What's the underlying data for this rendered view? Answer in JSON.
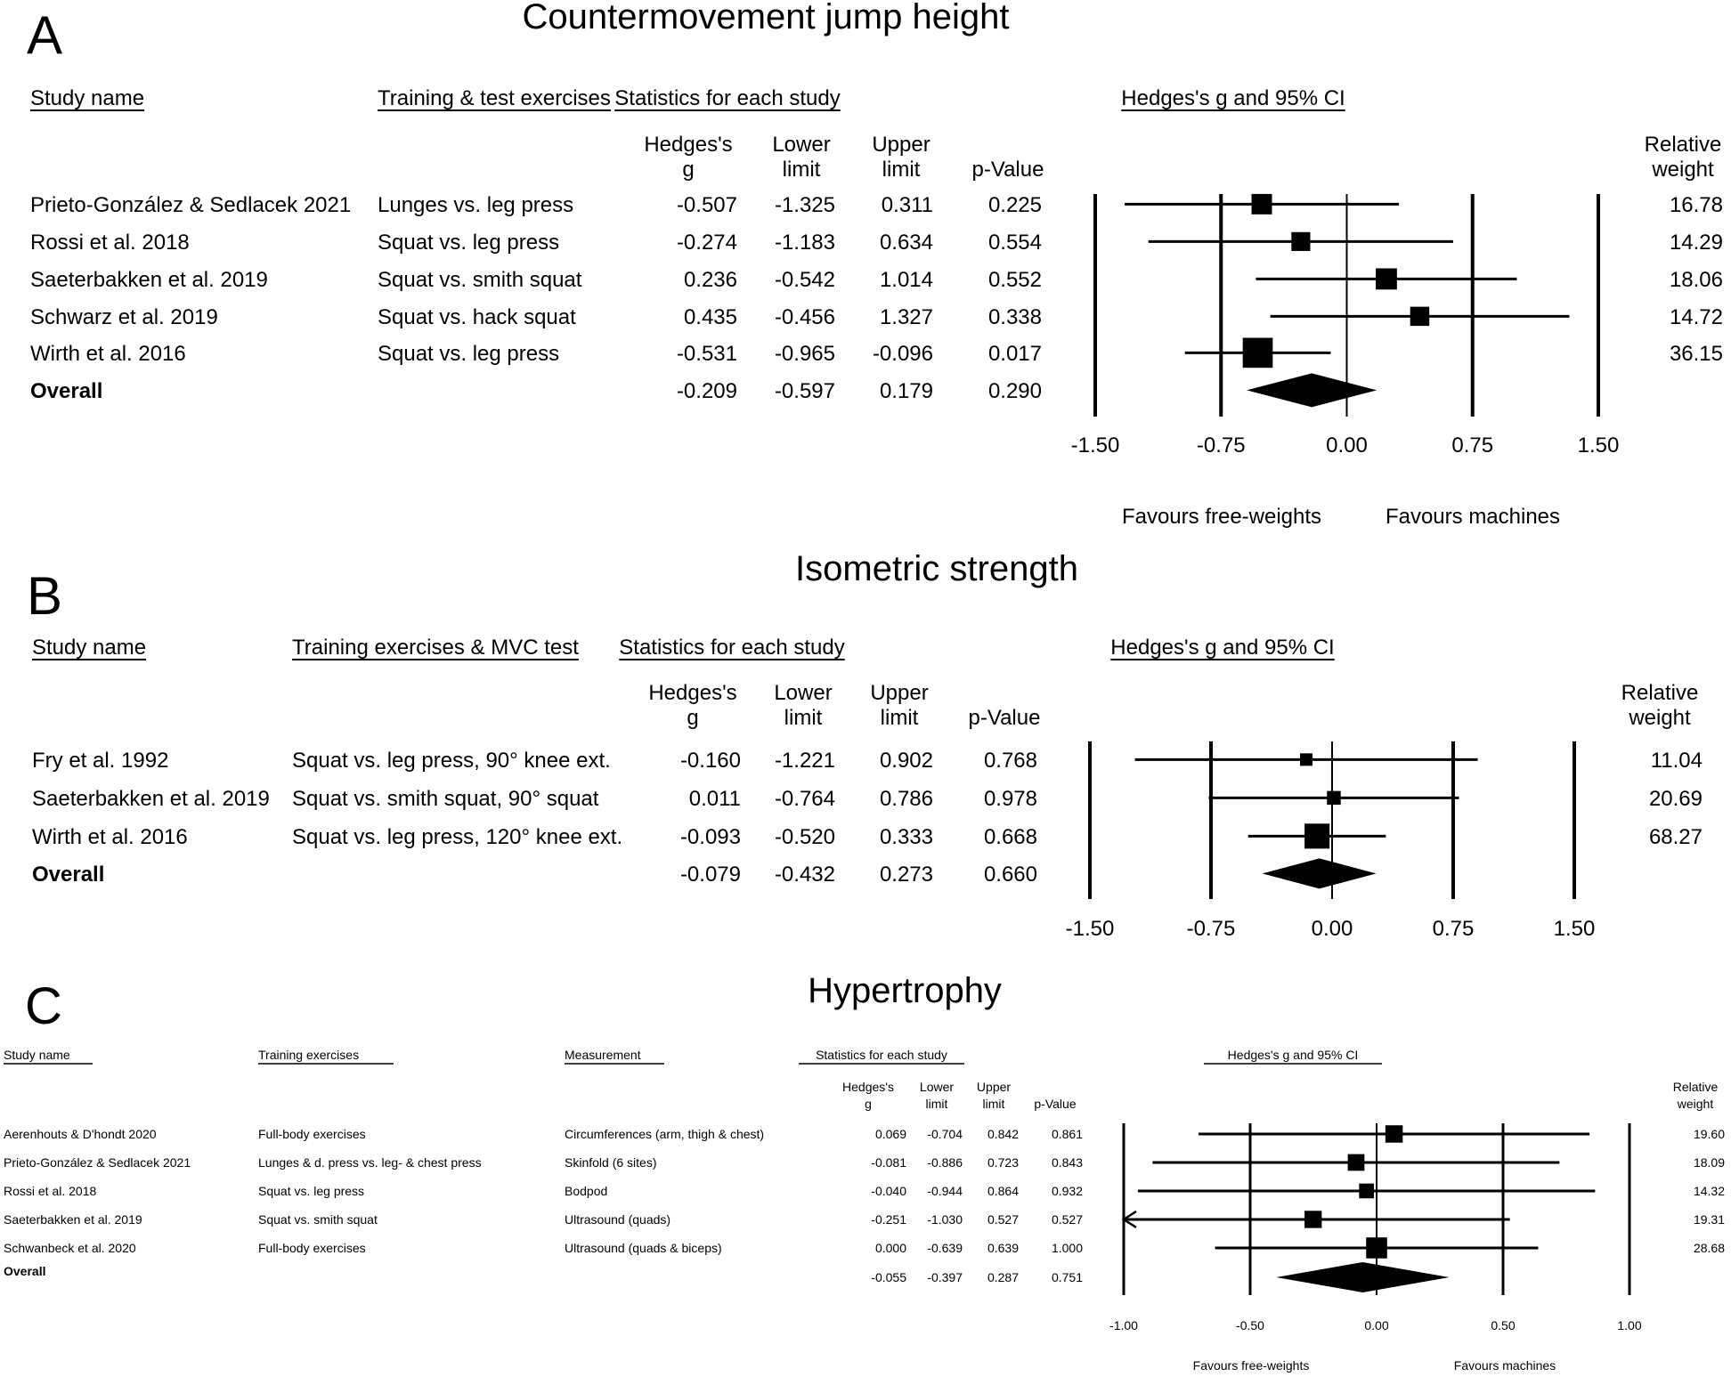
{
  "chart_data": [
    {
      "type": "forest",
      "panel": "A",
      "title": "Countermovement jump height",
      "col_headers": {
        "study": "Study name",
        "exercise": "Training & test exercises",
        "stats": "Statistics for each study",
        "plot": "Hedges's g and 95% CI",
        "g": [
          "Hedges's",
          "g"
        ],
        "lower": [
          "Lower",
          "limit"
        ],
        "upper": [
          "Upper",
          "limit"
        ],
        "p": "p-Value",
        "weight": [
          "Relative",
          "weight"
        ]
      },
      "rows": [
        {
          "study": "Prieto-González & Sedlacek 2021",
          "exercise": "Lunges vs. leg press",
          "g": "-0.507",
          "lower": "-1.325",
          "upper": "0.311",
          "p": "0.225",
          "weight": "16.78"
        },
        {
          "study": "Rossi et al. 2018",
          "exercise": "Squat vs. leg press",
          "g": "-0.274",
          "lower": "-1.183",
          "upper": "0.634",
          "p": "0.554",
          "weight": "14.29"
        },
        {
          "study": "Saeterbakken et al. 2019",
          "exercise": "Squat vs. smith squat",
          "g": "0.236",
          "lower": "-0.542",
          "upper": "1.014",
          "p": "0.552",
          "weight": "18.06"
        },
        {
          "study": "Schwarz et al. 2019",
          "exercise": "Squat vs. hack squat",
          "g": "0.435",
          "lower": "-0.456",
          "upper": "1.327",
          "p": "0.338",
          "weight": "14.72"
        },
        {
          "study": "Wirth et al. 2016",
          "exercise": "Squat vs. leg press",
          "g": "-0.531",
          "lower": "-0.965",
          "upper": "-0.096",
          "p": "0.017",
          "weight": "36.15"
        }
      ],
      "overall": {
        "label": "Overall",
        "g": "-0.209",
        "lower": "-0.597",
        "upper": "0.179",
        "p": "0.290"
      },
      "xlim": [
        -1.5,
        1.5
      ],
      "ticks": [
        "-1.50",
        "-0.75",
        "0.00",
        "0.75",
        "1.50"
      ],
      "tick_values": [
        -1.5,
        -0.75,
        0,
        0.75,
        1.5
      ],
      "favours": [
        "Favours free-weights",
        "Favours machines"
      ]
    },
    {
      "type": "forest",
      "panel": "B",
      "title": "Isometric strength",
      "col_headers": {
        "study": "Study name",
        "exercise": "Training exercises & MVC test",
        "stats": "Statistics for each study",
        "plot": "Hedges's g and 95% CI",
        "g": [
          "Hedges's",
          "g"
        ],
        "lower": [
          "Lower",
          "limit"
        ],
        "upper": [
          "Upper",
          "limit"
        ],
        "p": "p-Value",
        "weight": [
          "Relative",
          "weight"
        ]
      },
      "rows": [
        {
          "study": "Fry et al. 1992",
          "exercise": "Squat vs. leg press, 90° knee ext.",
          "g": "-0.160",
          "lower": "-1.221",
          "upper": "0.902",
          "p": "0.768",
          "weight": "11.04"
        },
        {
          "study": "Saeterbakken et al. 2019",
          "exercise": "Squat vs. smith squat, 90° squat",
          "g": "0.011",
          "lower": "-0.764",
          "upper": "0.786",
          "p": "0.978",
          "weight": "20.69"
        },
        {
          "study": "Wirth et al. 2016",
          "exercise": "Squat vs. leg press, 120° knee ext.",
          "g": "-0.093",
          "lower": "-0.520",
          "upper": "0.333",
          "p": "0.668",
          "weight": "68.27"
        }
      ],
      "overall": {
        "label": "Overall",
        "g": "-0.079",
        "lower": "-0.432",
        "upper": "0.273",
        "p": "0.660"
      },
      "xlim": [
        -1.5,
        1.5
      ],
      "ticks": [
        "-1.50",
        "-0.75",
        "0.00",
        "0.75",
        "1.50"
      ],
      "tick_values": [
        -1.5,
        -0.75,
        0,
        0.75,
        1.5
      ]
    },
    {
      "type": "forest",
      "panel": "C",
      "title": "Hypertrophy",
      "col_headers": {
        "study": "Study name",
        "exercise": "Training exercises",
        "measure": "Measurement",
        "stats": "Statistics for each study",
        "plot": "Hedges's g and 95% CI",
        "g": [
          "Hedges's",
          "g"
        ],
        "lower": [
          "Lower",
          "limit"
        ],
        "upper": [
          "Upper",
          "limit"
        ],
        "p": "p-Value",
        "weight": [
          "Relative",
          "weight"
        ]
      },
      "rows": [
        {
          "study": "Aerenhouts & D'hondt 2020",
          "exercise": "Full-body exercises",
          "measure": "Circumferences (arm, thigh & chest)",
          "g": "0.069",
          "lower": "-0.704",
          "upper": "0.842",
          "p": "0.861",
          "weight": "19.60"
        },
        {
          "study": "Prieto-González & Sedlacek 2021",
          "exercise": "Lunges & d. press vs. leg- & chest press",
          "measure": "Skinfold (6 sites)",
          "g": "-0.081",
          "lower": "-0.886",
          "upper": "0.723",
          "p": "0.843",
          "weight": "18.09"
        },
        {
          "study": "Rossi et al. 2018",
          "exercise": "Squat vs. leg press",
          "measure": "Bodpod",
          "g": "-0.040",
          "lower": "-0.944",
          "upper": "0.864",
          "p": "0.932",
          "weight": "14.32"
        },
        {
          "study": "Saeterbakken et al. 2019",
          "exercise": "Squat vs. smith squat",
          "measure": "Ultrasound (quads)",
          "g": "-0.251",
          "lower": "-1.030",
          "upper": "0.527",
          "p": "0.527",
          "weight": "19.31"
        },
        {
          "study": "Schwanbeck et al. 2020",
          "exercise": "Full-body exercises",
          "measure": "Ultrasound (quads & biceps)",
          "g": "0.000",
          "lower": "-0.639",
          "upper": "0.639",
          "p": "1.000",
          "weight": "28.68"
        }
      ],
      "overall": {
        "label": "Overall",
        "g": "-0.055",
        "lower": "-0.397",
        "upper": "0.287",
        "p": "0.751"
      },
      "xlim": [
        -1.0,
        1.0
      ],
      "ticks": [
        "-1.00",
        "-0.50",
        "0.00",
        "0.50",
        "1.00"
      ],
      "tick_values": [
        -1.0,
        -0.5,
        0,
        0.5,
        1.0
      ],
      "favours": [
        "Favours free-weights",
        "Favours machines"
      ]
    }
  ]
}
